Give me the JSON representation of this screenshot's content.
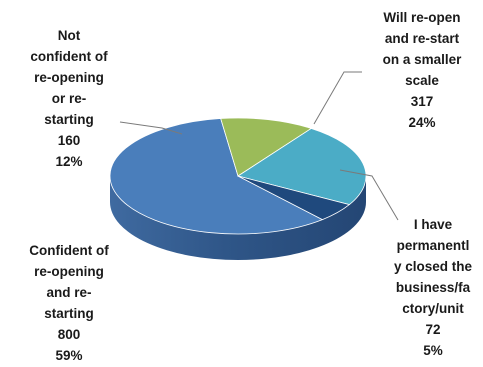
{
  "chart_data": {
    "type": "pie",
    "title": "",
    "style": "3d-exploded",
    "slices": [
      {
        "label_lines": [
          "Confident of",
          "re-opening",
          "and re-",
          "starting"
        ],
        "value": 800,
        "percent": "59%",
        "color": "#4a7ebb"
      },
      {
        "label_lines": [
          "Not",
          "confident of",
          "re-opening",
          "or re-",
          "starting"
        ],
        "value": 160,
        "percent": "12%",
        "color": "#9bbb59"
      },
      {
        "label_lines": [
          "Will re-open",
          "and re-start",
          "on a smaller",
          "scale"
        ],
        "value": 317,
        "percent": "24%",
        "color": "#4bacc6"
      },
      {
        "label_lines": [
          "I have",
          "permanentl",
          "y closed  the",
          "business/fa",
          "ctory/unit"
        ],
        "value": 72,
        "percent": "5%",
        "color": "#1f497d"
      }
    ]
  }
}
